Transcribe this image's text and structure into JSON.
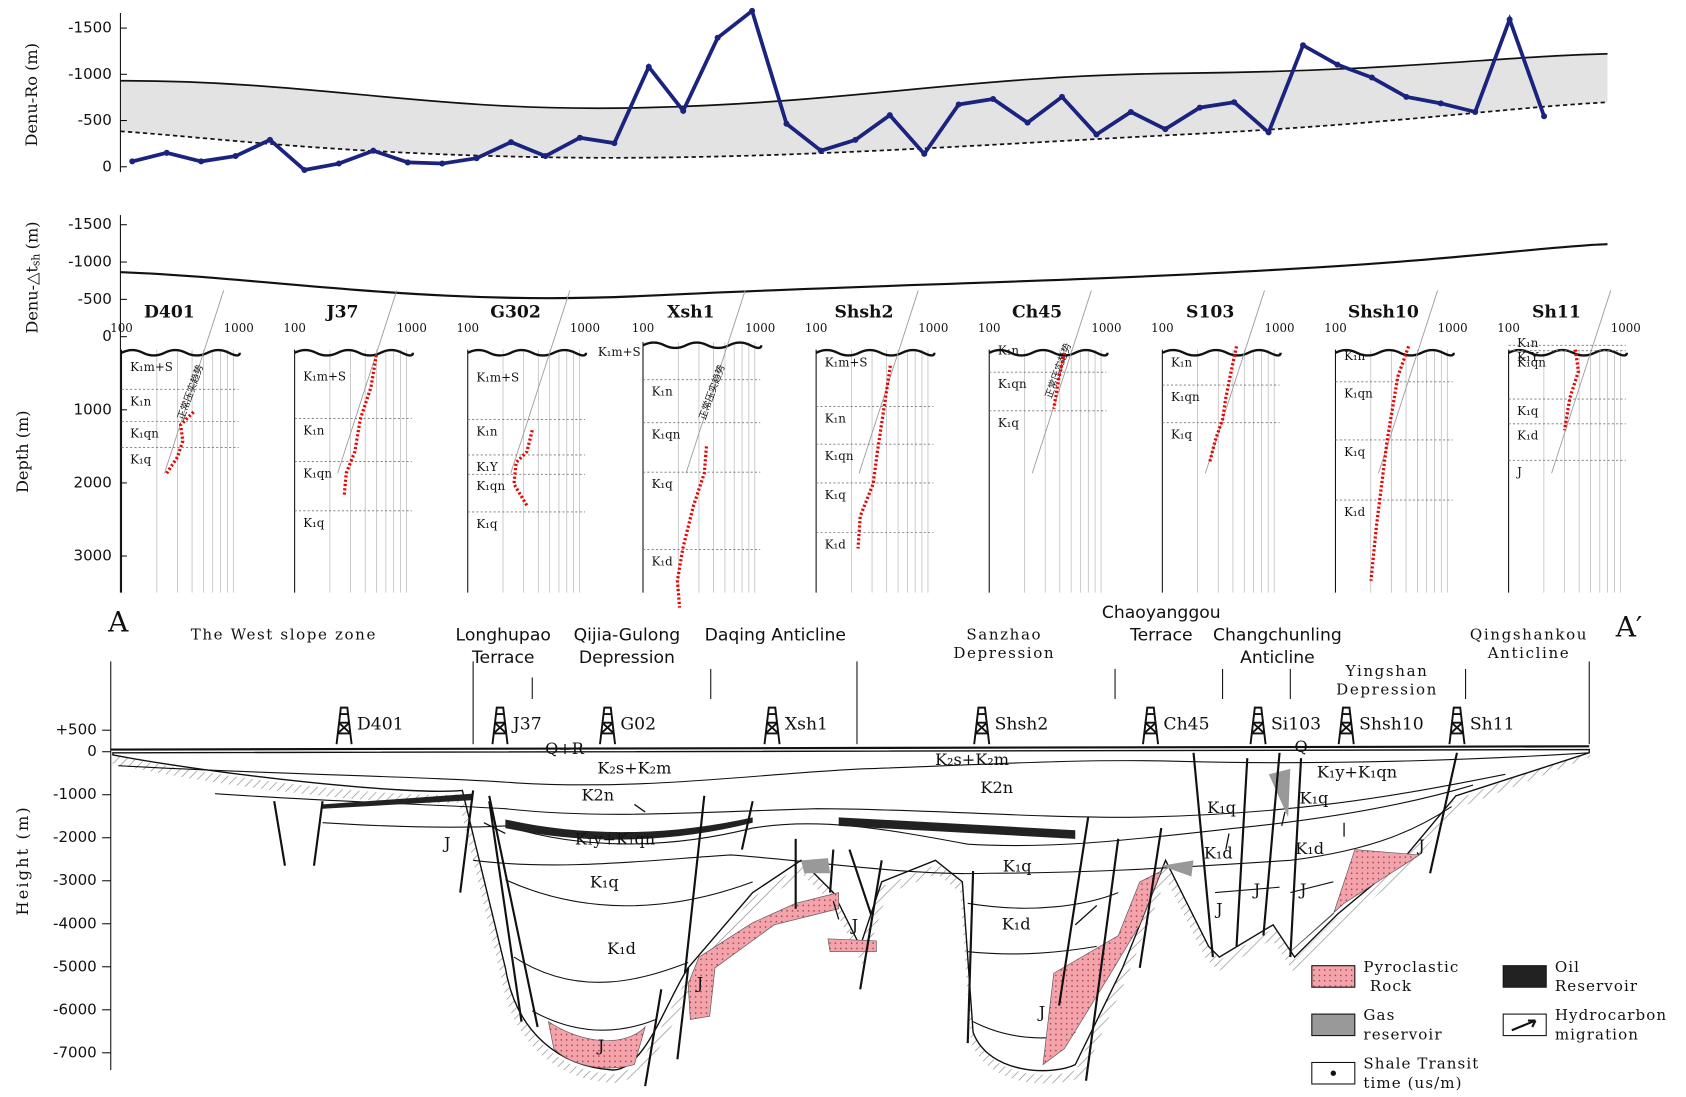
{
  "chart_data": [
    {
      "type": "line",
      "y_label": "Denu-Ro (m)",
      "ylim": [
        100,
        -1750
      ],
      "yticks": [
        -1500,
        -1000,
        -500,
        0
      ],
      "color": "#1a237e",
      "values": [
        -58,
        -151,
        -58,
        -116,
        -291,
        35,
        -35,
        -174,
        -47,
        -35,
        -93,
        -267,
        -116,
        -314,
        -256,
        -1081,
        -605,
        -1395,
        -1686,
        -465,
        -174,
        -291,
        -558,
        -140,
        -674,
        -733,
        -477,
        -756,
        -349,
        -593,
        -407,
        -640,
        -698,
        -372,
        -1314,
        -1105,
        -965,
        -756,
        -686,
        -593,
        -1593,
        -547
      ]
    },
    {
      "type": "curve",
      "y_label": "Denu-△t",
      "y_label_sub": "sh",
      "y_label_unit": "(m)",
      "ylim": [
        0,
        -1550
      ],
      "yticks": [
        -1500,
        -1000,
        -500
      ]
    }
  ],
  "logs": {
    "y_label": "Depth (m)",
    "ylim": [
      0,
      3500
    ],
    "yticks": [
      0,
      1000,
      2000,
      3000
    ],
    "trend_label": "正常压实趋势",
    "wells": [
      {
        "name": "D401",
        "xlim": [
          100,
          1000
        ],
        "formations": [
          [
            "K₁m+S",
            342
          ],
          [
            "K₁n",
            374
          ],
          [
            "K₁qn",
            404
          ],
          [
            "K₁q",
            428
          ]
        ]
      },
      {
        "name": "J37",
        "xlim": [
          100,
          1000
        ],
        "formations": [
          [
            "K₁m+S",
            351
          ],
          [
            "K₁n",
            401
          ],
          [
            "K₁qn",
            441
          ],
          [
            "K₁q",
            487
          ]
        ]
      },
      {
        "name": "G302",
        "xlim": [
          100,
          1000
        ],
        "formations": [
          [
            "K₁m+S",
            352
          ],
          [
            "K₁n",
            402
          ],
          [
            "K₁Y",
            435
          ],
          [
            "K₁qn",
            453
          ],
          [
            "K₁q",
            488
          ]
        ]
      },
      {
        "name": "Xsh1",
        "xlim": [
          100,
          1000
        ],
        "formations": [
          [
            "K₁m+S",
            328
          ],
          [
            "K₁n",
            365
          ],
          [
            "K₁qn",
            405
          ],
          [
            "K₁q",
            451
          ],
          [
            "K₁d",
            523
          ]
        ]
      },
      {
        "name": "Shsh2",
        "xlim": [
          100,
          1000
        ],
        "formations": [
          [
            "K₁m+S",
            338
          ],
          [
            "K₁n",
            390
          ],
          [
            "K₁qn",
            425
          ],
          [
            "K₁q",
            461
          ],
          [
            "K₁d",
            507
          ]
        ]
      },
      {
        "name": "Ch45",
        "xlim": [
          100,
          1000
        ],
        "formations": [
          [
            "K₁n",
            327
          ],
          [
            "K₁qn",
            358
          ],
          [
            "K₁q",
            394
          ]
        ]
      },
      {
        "name": "S103",
        "xlim": [
          100,
          1000
        ],
        "formations": [
          [
            "K₁n",
            338
          ],
          [
            "K₁qn",
            370
          ],
          [
            "K₁q",
            405
          ]
        ]
      },
      {
        "name": "Shsh10",
        "xlim": [
          100,
          1000
        ],
        "formations": [
          [
            "K₁n",
            332
          ],
          [
            "K₁qn",
            367
          ],
          [
            "K₁q",
            421
          ],
          [
            "K₁d",
            477
          ]
        ]
      },
      {
        "name": "Sh11",
        "xlim": [
          100,
          1000
        ],
        "formations": [
          [
            "K₁n",
            320
          ],
          [
            "K₁Y",
            333
          ],
          [
            "K₁qn",
            338
          ],
          [
            "K₁q",
            383
          ],
          [
            "K₁d",
            406
          ],
          [
            "J",
            440
          ]
        ]
      }
    ]
  },
  "section": {
    "y_label": "Height (m)",
    "ylim": [
      500,
      -7000
    ],
    "yticks": [
      {
        "value": 500,
        "label": "+500"
      },
      0,
      -1000,
      -2000,
      -3000,
      -4000,
      -5000,
      -6000,
      -7000
    ],
    "start_label": "A",
    "end_label": "A′",
    "zones": [
      [
        "The West slope zone"
      ],
      [
        "Longhupao",
        "Terrace"
      ],
      [
        "Qijia-Gulong",
        "Depression"
      ],
      [
        "Daqing Anticline"
      ],
      [
        "Sanzhao",
        "Depression"
      ],
      [
        "Chaoyanggou",
        "Terrace"
      ],
      [
        "Changchunling",
        "Anticline"
      ],
      [
        "Yingshan",
        "Depression"
      ],
      [
        "Qingshankou",
        "Anticline"
      ]
    ],
    "wells": [
      "D401",
      "J37",
      "G02",
      "Xsh1",
      "Shsh2",
      "Ch45",
      "Si103",
      "Shsh10",
      "Sh11"
    ],
    "formations": [
      "Q+R",
      "K₂s+K₂m",
      "K2n",
      "K₁y+K₁qn",
      "K₁q",
      "K₁d",
      "J",
      "J",
      "J",
      "J",
      "K₂s+K₂m",
      "K2n",
      "K₁q",
      "K₁d",
      "J",
      "K₁q",
      "K₁d",
      "J",
      "J",
      "K₁q",
      "K₁d",
      "J",
      "Q",
      "K₁y+K₁qn",
      "J"
    ],
    "legend": [
      [
        "Pyroclastic",
        "Rock"
      ],
      [
        "Oil",
        "Reservoir"
      ],
      [
        "Gas",
        "reservoir"
      ],
      [
        "Hydrocarbon",
        "migration"
      ],
      [
        "Shale Transit",
        "time (us/m)"
      ]
    ]
  }
}
